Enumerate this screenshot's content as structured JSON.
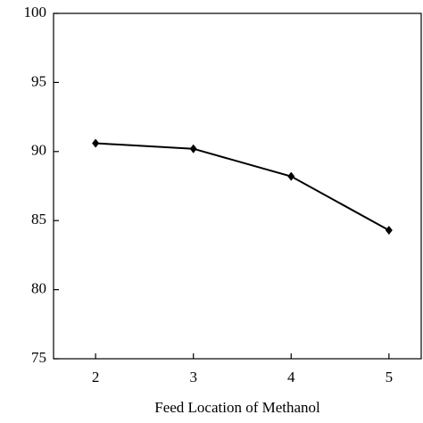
{
  "chart_data": {
    "type": "line",
    "x_label": "Feed Location  of Methanol",
    "x": [
      2,
      3,
      4,
      5
    ],
    "series": [
      {
        "color": "#000000",
        "values": [
          90.6,
          90.2,
          88.2,
          84.3
        ]
      }
    ],
    "xlim": [
      1.57,
      5.33
    ],
    "xticks": [
      2,
      3,
      4,
      5
    ],
    "ylim": [
      75,
      100
    ],
    "yticks": [
      75,
      80,
      85,
      90,
      95,
      100
    ]
  }
}
